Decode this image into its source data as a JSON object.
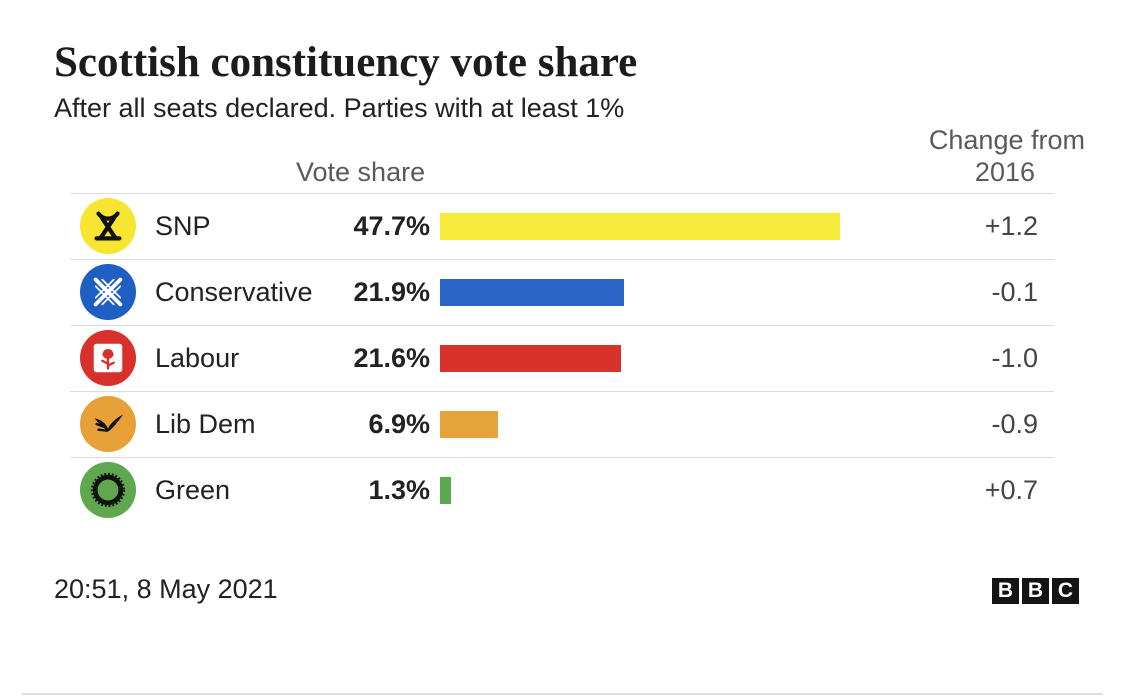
{
  "chart_data": {
    "type": "bar",
    "orientation": "horizontal",
    "title": "Scottish constituency vote share",
    "subtitle": "After all seats declared. Parties with at least 1%",
    "value_column_label": "Vote share",
    "change_column_label": [
      "Change from",
      "2016"
    ],
    "categories": [
      "SNP",
      "Conservative",
      "Labour",
      "Lib Dem",
      "Green"
    ],
    "values": [
      47.7,
      21.9,
      21.6,
      6.9,
      1.3
    ],
    "value_labels": [
      "47.7%",
      "21.9%",
      "21.6%",
      "6.9%",
      "1.3%"
    ],
    "change": [
      "+1.2",
      "-0.1",
      "-1.0",
      "-0.9",
      "+0.7"
    ],
    "colors": [
      "#f6ea3a",
      "#2a64c6",
      "#d8322b",
      "#e6a33a",
      "#5ba851"
    ],
    "logo_colors": [
      "#f7e531",
      "#1f5fc3",
      "#d8302b",
      "#e8a138",
      "#5fa84f"
    ],
    "icons": [
      "snp-logo-icon",
      "conservative-logo-icon",
      "labour-rose-icon",
      "lib-dem-bird-icon",
      "green-logo-icon"
    ],
    "xlim": [
      0,
      50
    ],
    "grid": false,
    "legend": "none"
  },
  "footer": {
    "timestamp": "20:51, 8 May 2021",
    "source_letters": [
      "B",
      "B",
      "C"
    ]
  }
}
